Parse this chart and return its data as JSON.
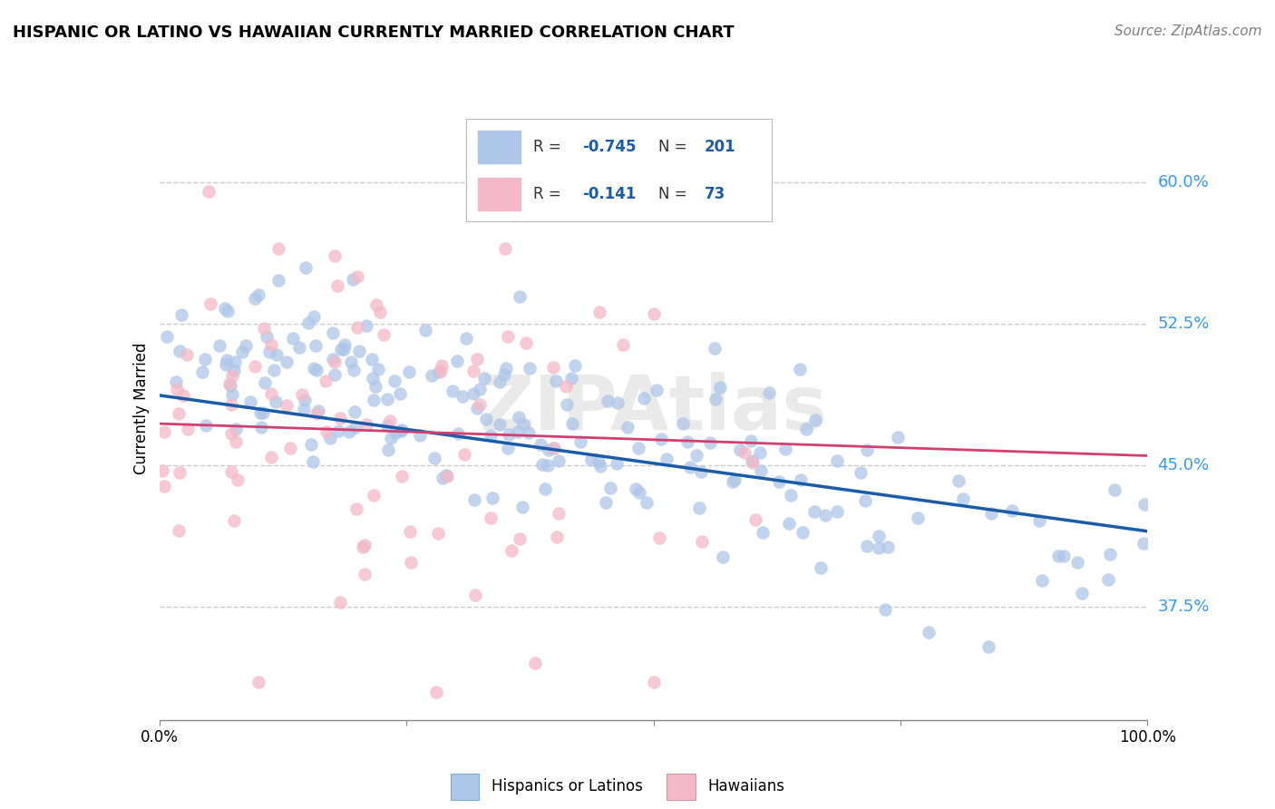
{
  "title": "HISPANIC OR LATINO VS HAWAIIAN CURRENTLY MARRIED CORRELATION CHART",
  "source": "Source: ZipAtlas.com",
  "ylabel": "Currently Married",
  "legend_entries": [
    {
      "label": "Hispanics or Latinos",
      "color": "#aec6e8",
      "edge_color": "#7bafd4",
      "R": -0.745,
      "N": 201,
      "R_str": "-0.745",
      "N_str": "201"
    },
    {
      "label": "Hawaiians",
      "color": "#f4b8c8",
      "edge_color": "#e090a8",
      "R": -0.141,
      "N": 73,
      "R_str": "-0.141",
      "N_str": "73"
    }
  ],
  "ytick_labels": [
    "37.5%",
    "45.0%",
    "52.5%",
    "60.0%"
  ],
  "ytick_values": [
    0.375,
    0.45,
    0.525,
    0.6
  ],
  "xlim": [
    0.0,
    1.0
  ],
  "ylim": [
    0.315,
    0.645
  ],
  "blue_color": "#aec6e8",
  "pink_color": "#f4b8c8",
  "blue_line_color": "#1a5ca8",
  "pink_line_color": "#d04070",
  "watermark": "ZIPAtlas",
  "background_color": "#ffffff",
  "grid_color": "#cccccc",
  "title_fontsize": 13,
  "source_fontsize": 11,
  "tick_fontsize": 12,
  "ylabel_fontsize": 12
}
